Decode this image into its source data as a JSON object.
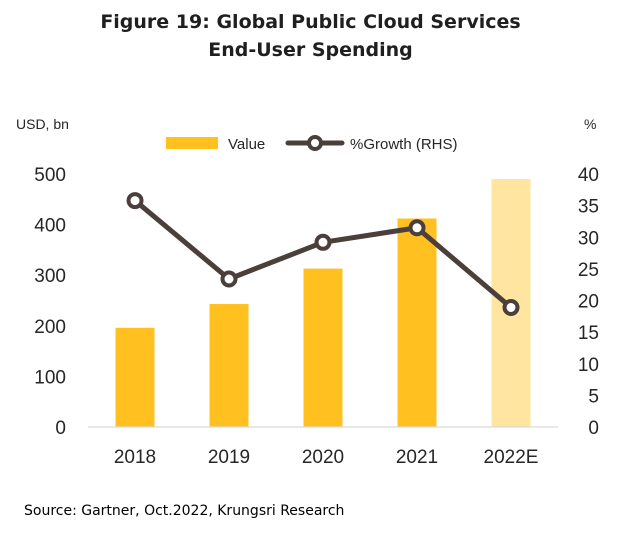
{
  "title_line1": "Figure 19: Global Public Cloud Services",
  "title_line2": "End-User Spending",
  "source": "Source: Gartner, Oct.2022, Krungsri Research",
  "chart_data": {
    "type": "bar",
    "categories": [
      "2018",
      "2019",
      "2020",
      "2021",
      "2022E"
    ],
    "series": [
      {
        "name": "Value",
        "type": "bar",
        "axis": "left",
        "values": [
          196,
          243,
          313,
          412,
          490
        ],
        "color": "#FFC020",
        "highlight_last_color": "#FFE5A0"
      },
      {
        "name": "%Growth (RHS)",
        "type": "line",
        "axis": "right",
        "values": [
          35.8,
          23.4,
          29.2,
          31.5,
          18.9
        ],
        "color": "#4A3F3B",
        "marker": "hollow-circle"
      }
    ],
    "left_axis": {
      "label": "USD, bn",
      "ylim": [
        0,
        500
      ],
      "ticks": [
        "0",
        "100",
        "200",
        "300",
        "400",
        "500"
      ]
    },
    "right_axis": {
      "label": "%",
      "ylim": [
        0,
        40
      ],
      "ticks": [
        "0",
        "5",
        "10",
        "15",
        "20",
        "25",
        "30",
        "35",
        "40"
      ]
    },
    "legend": {
      "position": "top-center",
      "entries": [
        "Value",
        "%Growth (RHS)"
      ]
    },
    "grid": false
  }
}
